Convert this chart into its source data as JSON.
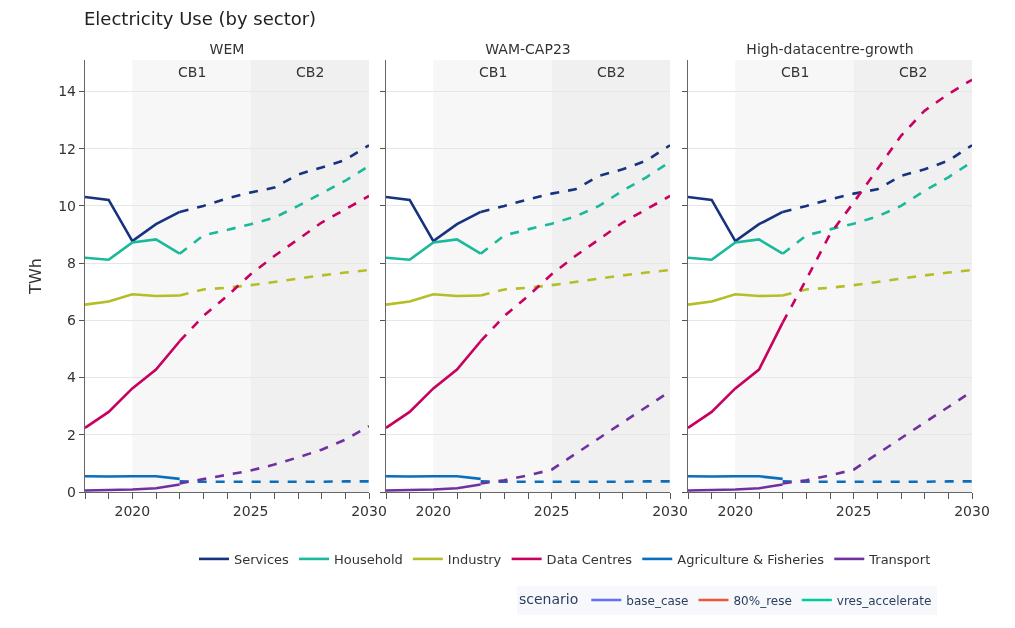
{
  "chart_data": [
    {
      "type": "line",
      "title": "WEM",
      "ylabel": "TWh",
      "annotations": [
        "Electricity Use (by sector)"
      ],
      "legend": "bottom",
      "legend_title": "scenario",
      "grid": "y",
      "xlim": [
        2018,
        2030
      ],
      "ylim": [
        0,
        15.1
      ],
      "xticks": [
        {
          "value": 2018,
          "label": null
        },
        {
          "value": 2019,
          "label": null
        },
        2020,
        {
          "value": 2021,
          "label": null
        },
        {
          "value": 2022,
          "label": null
        },
        {
          "value": 2023,
          "label": null
        },
        {
          "value": 2024,
          "label": null
        },
        2025,
        {
          "value": 2026,
          "label": null
        },
        {
          "value": 2027,
          "label": null
        },
        {
          "value": 2028,
          "label": null
        },
        {
          "value": 2029,
          "label": null
        },
        2030
      ],
      "yticks": [
        0,
        2,
        4,
        6,
        8,
        10,
        12,
        14
      ],
      "bands": [
        {
          "axis": "x",
          "from": 2020,
          "to": 2025,
          "label": "CB1",
          "color": "#f7f7f7"
        },
        {
          "axis": "x",
          "from": 2025,
          "to": 2030,
          "label": "CB2",
          "color": "#f0f0f0"
        }
      ],
      "series": [
        {
          "name": "Services",
          "color": "#17337f",
          "line_style": "solid",
          "x": [
            2018,
            2019,
            2020,
            2021,
            2022
          ],
          "values": [
            10.31,
            10.21,
            8.77,
            9.36,
            9.79
          ]
        },
        {
          "name": "Household",
          "color": "#19b99a",
          "line_style": "solid",
          "x": [
            2018,
            2019,
            2020,
            2021,
            2022
          ],
          "values": [
            8.19,
            8.12,
            8.72,
            8.83,
            8.33
          ]
        },
        {
          "name": "Industry",
          "color": "#b5bd27",
          "line_style": "solid",
          "x": [
            2018,
            2019,
            2020,
            2021,
            2022
          ],
          "values": [
            6.55,
            6.66,
            6.91,
            6.85,
            6.87
          ]
        },
        {
          "name": "Data Centres",
          "color": "#c8005f",
          "line_style": "solid",
          "x": [
            2018,
            2019,
            2020,
            2021,
            2022
          ],
          "values": [
            2.24,
            2.8,
            3.62,
            4.28,
            5.27
          ]
        },
        {
          "name": "Agriculture & Fisheries",
          "color": "#0a6ebd",
          "line_style": "solid",
          "x": [
            2018,
            2019,
            2020,
            2021,
            2022
          ],
          "values": [
            0.55,
            0.54,
            0.55,
            0.55,
            0.46
          ]
        },
        {
          "name": "Transport",
          "color": "#7030a0",
          "line_style": "solid",
          "x": [
            2018,
            2019,
            2020,
            2021,
            2022
          ],
          "values": [
            0.05,
            0.07,
            0.09,
            0.13,
            0.26
          ]
        },
        {
          "color": "#17337f",
          "line_style": "dashed",
          "x": [
            2022,
            2023,
            2024,
            2025,
            2026,
            2027,
            2028,
            2029,
            2030
          ],
          "values": [
            9.79,
            10.0,
            10.26,
            10.47,
            10.64,
            11.1,
            11.34,
            11.61,
            12.12
          ]
        },
        {
          "color": "#19b99a",
          "line_style": "dashed",
          "x": [
            2022,
            2023,
            2024,
            2025,
            2026,
            2027,
            2028,
            2029,
            2030
          ],
          "values": [
            8.33,
            8.97,
            9.16,
            9.36,
            9.59,
            10.0,
            10.44,
            10.88,
            11.4
          ]
        },
        {
          "color": "#b5bd27",
          "line_style": "dashed",
          "x": [
            2022,
            2023,
            2024,
            2025,
            2026,
            2027,
            2028,
            2029,
            2030
          ],
          "values": [
            6.87,
            7.08,
            7.14,
            7.23,
            7.34,
            7.46,
            7.57,
            7.67,
            7.76
          ]
        },
        {
          "color": "#c8005f",
          "line_style": "dashed",
          "x": [
            2022,
            2023,
            2024,
            2025,
            2026,
            2027,
            2028,
            2029,
            2030
          ],
          "values": [
            5.27,
            6.15,
            6.85,
            7.61,
            8.25,
            8.83,
            9.42,
            9.88,
            10.35
          ]
        },
        {
          "color": "#0a6ebd",
          "line_style": "dashed",
          "x": [
            2022,
            2023,
            2024,
            2025,
            2026,
            2027,
            2028,
            2029,
            2030
          ],
          "values": [
            0.37,
            0.36,
            0.36,
            0.36,
            0.36,
            0.36,
            0.36,
            0.37,
            0.37
          ]
        },
        {
          "color": "#7030a0",
          "line_style": "dashed",
          "x": [
            2022,
            2023,
            2024,
            2025,
            2026,
            2027,
            2028,
            2029,
            2030
          ],
          "values": [
            0.3,
            0.45,
            0.6,
            0.75,
            0.96,
            1.21,
            1.48,
            1.83,
            2.3
          ]
        },
        {
          "name": "base_case",
          "color": "#636efa",
          "line_style": "solid"
        },
        {
          "name": "80%_rese",
          "color": "#ef553b",
          "line_style": "solid"
        },
        {
          "name": "vres_accelerate",
          "color": "#00cc96",
          "line_style": "solid"
        }
      ]
    },
    {
      "type": "line",
      "title": "WAM-CAP23",
      "grid": "y",
      "tick_labels": "x",
      "xlim": [
        2018,
        2030
      ],
      "ylim": [
        0,
        15.1
      ],
      "xticks": [
        {
          "value": 2018,
          "label": null
        },
        {
          "value": 2019,
          "label": null
        },
        2020,
        {
          "value": 2021,
          "label": null
        },
        {
          "value": 2022,
          "label": null
        },
        {
          "value": 2023,
          "label": null
        },
        {
          "value": 2024,
          "label": null
        },
        2025,
        {
          "value": 2026,
          "label": null
        },
        {
          "value": 2027,
          "label": null
        },
        {
          "value": 2028,
          "label": null
        },
        {
          "value": 2029,
          "label": null
        },
        2030
      ],
      "yticks": [
        0,
        2,
        4,
        6,
        8,
        10,
        12,
        14
      ],
      "bands": [
        {
          "axis": "x",
          "from": 2020,
          "to": 2025,
          "label": "CB1",
          "color": "#f7f7f7"
        },
        {
          "axis": "x",
          "from": 2025,
          "to": 2030,
          "label": "CB2",
          "color": "#f0f0f0"
        }
      ],
      "series": [
        {
          "color": "#17337f",
          "line_style": "solid",
          "x": [
            2018,
            2019,
            2020,
            2021,
            2022
          ],
          "values": [
            10.31,
            10.21,
            8.77,
            9.36,
            9.79
          ]
        },
        {
          "color": "#19b99a",
          "line_style": "solid",
          "x": [
            2018,
            2019,
            2020,
            2021,
            2022
          ],
          "values": [
            8.19,
            8.12,
            8.72,
            8.83,
            8.33
          ]
        },
        {
          "color": "#b5bd27",
          "line_style": "solid",
          "x": [
            2018,
            2019,
            2020,
            2021,
            2022
          ],
          "values": [
            6.55,
            6.66,
            6.91,
            6.85,
            6.87
          ]
        },
        {
          "color": "#c8005f",
          "line_style": "solid",
          "x": [
            2018,
            2019,
            2020,
            2021,
            2022
          ],
          "values": [
            2.24,
            2.8,
            3.62,
            4.28,
            5.27
          ]
        },
        {
          "color": "#0a6ebd",
          "line_style": "solid",
          "x": [
            2018,
            2019,
            2020,
            2021,
            2022
          ],
          "values": [
            0.55,
            0.54,
            0.55,
            0.55,
            0.46
          ]
        },
        {
          "color": "#7030a0",
          "line_style": "solid",
          "x": [
            2018,
            2019,
            2020,
            2021,
            2022
          ],
          "values": [
            0.05,
            0.07,
            0.09,
            0.13,
            0.26
          ]
        },
        {
          "color": "#17337f",
          "line_style": "dashed",
          "x": [
            2022,
            2023,
            2024,
            2025,
            2026,
            2027,
            2028,
            2029,
            2030
          ],
          "values": [
            9.79,
            10.0,
            10.23,
            10.43,
            10.58,
            11.05,
            11.28,
            11.58,
            12.12
          ]
        },
        {
          "color": "#19b99a",
          "line_style": "dashed",
          "x": [
            2022,
            2023,
            2024,
            2025,
            2026,
            2027,
            2028,
            2029,
            2030
          ],
          "values": [
            8.33,
            8.97,
            9.18,
            9.38,
            9.63,
            10.0,
            10.53,
            11.0,
            11.54
          ]
        },
        {
          "color": "#b5bd27",
          "line_style": "dashed",
          "x": [
            2022,
            2023,
            2024,
            2025,
            2026,
            2027,
            2028,
            2029,
            2030
          ],
          "values": [
            6.87,
            7.08,
            7.14,
            7.23,
            7.34,
            7.46,
            7.57,
            7.67,
            7.76
          ]
        },
        {
          "color": "#c8005f",
          "line_style": "dashed",
          "x": [
            2022,
            2023,
            2024,
            2025,
            2026,
            2027,
            2028,
            2029,
            2030
          ],
          "values": [
            5.27,
            6.15,
            6.85,
            7.61,
            8.25,
            8.83,
            9.42,
            9.88,
            10.35
          ]
        },
        {
          "color": "#0a6ebd",
          "line_style": "dashed",
          "x": [
            2022,
            2023,
            2024,
            2025,
            2026,
            2027,
            2028,
            2029,
            2030
          ],
          "values": [
            0.37,
            0.36,
            0.36,
            0.36,
            0.36,
            0.36,
            0.36,
            0.37,
            0.37
          ]
        },
        {
          "color": "#7030a0",
          "line_style": "dashed",
          "x": [
            2022,
            2023,
            2024,
            2025,
            2026,
            2027,
            2028,
            2029,
            2030
          ],
          "values": [
            0.3,
            0.41,
            0.58,
            0.78,
            1.33,
            1.88,
            2.43,
            2.97,
            3.52
          ]
        }
      ]
    },
    {
      "type": "line",
      "title": "High-datacentre-growth",
      "grid": "y",
      "tick_labels": "x",
      "xlim": [
        2018,
        2030
      ],
      "ylim": [
        0,
        15.1
      ],
      "xticks": [
        {
          "value": 2018,
          "label": null
        },
        {
          "value": 2019,
          "label": null
        },
        2020,
        {
          "value": 2021,
          "label": null
        },
        {
          "value": 2022,
          "label": null
        },
        {
          "value": 2023,
          "label": null
        },
        {
          "value": 2024,
          "label": null
        },
        2025,
        {
          "value": 2026,
          "label": null
        },
        {
          "value": 2027,
          "label": null
        },
        {
          "value": 2028,
          "label": null
        },
        {
          "value": 2029,
          "label": null
        },
        2030
      ],
      "yticks": [
        0,
        2,
        4,
        6,
        8,
        10,
        12,
        14
      ],
      "bands": [
        {
          "axis": "x",
          "from": 2020,
          "to": 2025,
          "label": "CB1",
          "color": "#f7f7f7"
        },
        {
          "axis": "x",
          "from": 2025,
          "to": 2030,
          "label": "CB2",
          "color": "#f0f0f0"
        }
      ],
      "series": [
        {
          "color": "#17337f",
          "line_style": "solid",
          "x": [
            2018,
            2019,
            2020,
            2021,
            2022
          ],
          "values": [
            10.31,
            10.21,
            8.77,
            9.36,
            9.79
          ]
        },
        {
          "color": "#19b99a",
          "line_style": "solid",
          "x": [
            2018,
            2019,
            2020,
            2021,
            2022
          ],
          "values": [
            8.19,
            8.12,
            8.72,
            8.83,
            8.33
          ]
        },
        {
          "color": "#b5bd27",
          "line_style": "solid",
          "x": [
            2018,
            2019,
            2020,
            2021,
            2022
          ],
          "values": [
            6.55,
            6.66,
            6.91,
            6.85,
            6.87
          ]
        },
        {
          "color": "#c8005f",
          "line_style": "solid",
          "x": [
            2018,
            2019,
            2020,
            2021,
            2022
          ],
          "values": [
            2.24,
            2.8,
            3.62,
            4.28,
            5.92
          ]
        },
        {
          "color": "#0a6ebd",
          "line_style": "solid",
          "x": [
            2018,
            2019,
            2020,
            2021,
            2022
          ],
          "values": [
            0.55,
            0.54,
            0.55,
            0.55,
            0.46
          ]
        },
        {
          "color": "#7030a0",
          "line_style": "solid",
          "x": [
            2018,
            2019,
            2020,
            2021,
            2022
          ],
          "values": [
            0.05,
            0.07,
            0.09,
            0.13,
            0.26
          ]
        },
        {
          "color": "#17337f",
          "line_style": "dashed",
          "x": [
            2022,
            2023,
            2024,
            2025,
            2026,
            2027,
            2028,
            2029,
            2030
          ],
          "values": [
            9.79,
            10.0,
            10.23,
            10.43,
            10.58,
            11.05,
            11.28,
            11.58,
            12.12
          ]
        },
        {
          "color": "#19b99a",
          "line_style": "dashed",
          "x": [
            2022,
            2023,
            2024,
            2025,
            2026,
            2027,
            2028,
            2029,
            2030
          ],
          "values": [
            8.33,
            8.97,
            9.18,
            9.38,
            9.63,
            10.0,
            10.53,
            11.0,
            11.54
          ]
        },
        {
          "color": "#b5bd27",
          "line_style": "dashed",
          "x": [
            2022,
            2023,
            2024,
            2025,
            2026,
            2027,
            2028,
            2029,
            2030
          ],
          "values": [
            6.87,
            7.08,
            7.14,
            7.23,
            7.34,
            7.46,
            7.57,
            7.67,
            7.76
          ]
        },
        {
          "color": "#c8005f",
          "line_style": "dashed",
          "x": [
            2022,
            2023,
            2024,
            2025,
            2026,
            2027,
            2028,
            2029,
            2030
          ],
          "values": [
            5.92,
            7.43,
            9.01,
            10.12,
            11.28,
            12.45,
            13.33,
            13.91,
            14.41
          ]
        },
        {
          "color": "#0a6ebd",
          "line_style": "dashed",
          "x": [
            2022,
            2023,
            2024,
            2025,
            2026,
            2027,
            2028,
            2029,
            2030
          ],
          "values": [
            0.37,
            0.36,
            0.36,
            0.36,
            0.36,
            0.36,
            0.36,
            0.37,
            0.37
          ]
        },
        {
          "color": "#7030a0",
          "line_style": "dashed",
          "x": [
            2022,
            2023,
            2024,
            2025,
            2026,
            2027,
            2028,
            2029,
            2030
          ],
          "values": [
            0.3,
            0.41,
            0.58,
            0.78,
            1.33,
            1.88,
            2.43,
            2.97,
            3.52
          ]
        }
      ]
    }
  ]
}
